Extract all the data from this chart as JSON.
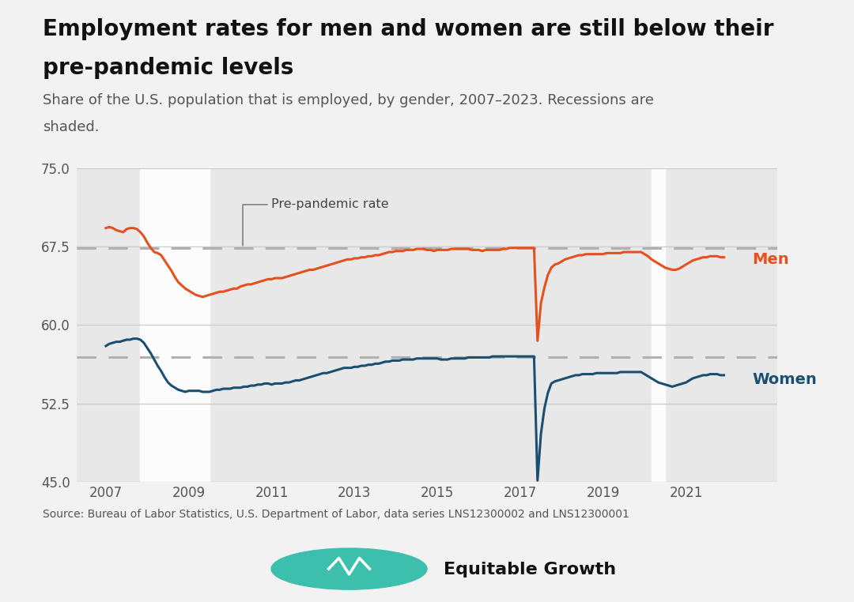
{
  "title": "Employment rates for men and women are still below their\npre-pandemic levels",
  "subtitle": "Share of the U.S. population that is employed, by gender, 2007–2023. Recessions are\nshaded.",
  "source": "Source: Bureau of Labor Statistics, U.S. Department of Labor, data series LNS12300002 and LNS12300001",
  "background_color": "#f2f2f2",
  "plot_bg_color": "#e8e8e8",
  "recession1_start": 2007.83,
  "recession1_end": 2009.5,
  "recession2_start": 2020.17,
  "recession2_end": 2020.5,
  "men_prepandemic": 67.4,
  "women_prepandemic": 56.9,
  "men_color": "#e5501e",
  "women_color": "#1b4f72",
  "annotation_text": "Pre-pandemic rate",
  "ylim": [
    45.0,
    75.0
  ],
  "xtick_years": [
    2007,
    2009,
    2011,
    2013,
    2015,
    2017,
    2019,
    2021
  ],
  "xlim_start": 2006.3,
  "xlim_end": 2023.2,
  "men_data": [
    69.3,
    69.4,
    69.3,
    69.1,
    69.0,
    68.9,
    69.2,
    69.3,
    69.3,
    69.2,
    68.9,
    68.5,
    67.9,
    67.4,
    67.0,
    66.9,
    66.7,
    66.2,
    65.7,
    65.2,
    64.6,
    64.1,
    63.8,
    63.5,
    63.3,
    63.1,
    62.9,
    62.8,
    62.7,
    62.8,
    62.9,
    63.0,
    63.1,
    63.2,
    63.2,
    63.3,
    63.4,
    63.5,
    63.5,
    63.7,
    63.8,
    63.9,
    63.9,
    64.0,
    64.1,
    64.2,
    64.3,
    64.4,
    64.4,
    64.5,
    64.5,
    64.5,
    64.6,
    64.7,
    64.8,
    64.9,
    65.0,
    65.1,
    65.2,
    65.3,
    65.3,
    65.4,
    65.5,
    65.6,
    65.7,
    65.8,
    65.9,
    66.0,
    66.1,
    66.2,
    66.3,
    66.3,
    66.4,
    66.4,
    66.5,
    66.5,
    66.6,
    66.6,
    66.7,
    66.7,
    66.8,
    66.9,
    67.0,
    67.0,
    67.1,
    67.1,
    67.1,
    67.2,
    67.2,
    67.2,
    67.3,
    67.3,
    67.3,
    67.2,
    67.2,
    67.1,
    67.2,
    67.2,
    67.2,
    67.2,
    67.3,
    67.3,
    67.3,
    67.3,
    67.3,
    67.3,
    67.2,
    67.2,
    67.2,
    67.1,
    67.2,
    67.2,
    67.2,
    67.2,
    67.2,
    67.3,
    67.3,
    67.4,
    67.4,
    67.4,
    67.4,
    67.4,
    67.4,
    67.4,
    67.4,
    58.5,
    62.1,
    63.6,
    64.8,
    65.5,
    65.8,
    65.9,
    66.1,
    66.3,
    66.4,
    66.5,
    66.6,
    66.7,
    66.7,
    66.8,
    66.8,
    66.8,
    66.8,
    66.8,
    66.8,
    66.9,
    66.9,
    66.9,
    66.9,
    66.9,
    67.0,
    67.0,
    67.0,
    67.0,
    67.0,
    67.0,
    66.8,
    66.6,
    66.3,
    66.1,
    65.9,
    65.7,
    65.5,
    65.4,
    65.3,
    65.3,
    65.4,
    65.6,
    65.8,
    66.0,
    66.2,
    66.3,
    66.4,
    66.5,
    66.5,
    66.6,
    66.6,
    66.6,
    66.5,
    66.5
  ],
  "women_data": [
    58.0,
    58.2,
    58.3,
    58.4,
    58.4,
    58.5,
    58.6,
    58.6,
    58.7,
    58.7,
    58.6,
    58.3,
    57.8,
    57.3,
    56.7,
    56.1,
    55.6,
    55.0,
    54.5,
    54.2,
    54.0,
    53.8,
    53.7,
    53.6,
    53.7,
    53.7,
    53.7,
    53.7,
    53.6,
    53.6,
    53.6,
    53.7,
    53.8,
    53.8,
    53.9,
    53.9,
    53.9,
    54.0,
    54.0,
    54.0,
    54.1,
    54.1,
    54.2,
    54.2,
    54.3,
    54.3,
    54.4,
    54.4,
    54.3,
    54.4,
    54.4,
    54.4,
    54.5,
    54.5,
    54.6,
    54.7,
    54.7,
    54.8,
    54.9,
    55.0,
    55.1,
    55.2,
    55.3,
    55.4,
    55.4,
    55.5,
    55.6,
    55.7,
    55.8,
    55.9,
    55.9,
    55.9,
    56.0,
    56.0,
    56.1,
    56.1,
    56.2,
    56.2,
    56.3,
    56.3,
    56.4,
    56.5,
    56.5,
    56.6,
    56.6,
    56.6,
    56.7,
    56.7,
    56.7,
    56.7,
    56.8,
    56.8,
    56.8,
    56.8,
    56.8,
    56.8,
    56.8,
    56.7,
    56.7,
    56.7,
    56.8,
    56.8,
    56.8,
    56.8,
    56.8,
    56.9,
    56.9,
    56.9,
    56.9,
    56.9,
    56.9,
    56.9,
    57.0,
    57.0,
    57.0,
    57.0,
    57.0,
    57.0,
    57.0,
    57.0,
    57.0,
    57.0,
    57.0,
    57.0,
    57.0,
    45.1,
    49.6,
    52.0,
    53.5,
    54.4,
    54.6,
    54.7,
    54.8,
    54.9,
    55.0,
    55.1,
    55.2,
    55.2,
    55.3,
    55.3,
    55.3,
    55.3,
    55.4,
    55.4,
    55.4,
    55.4,
    55.4,
    55.4,
    55.4,
    55.5,
    55.5,
    55.5,
    55.5,
    55.5,
    55.5,
    55.5,
    55.3,
    55.1,
    54.9,
    54.7,
    54.5,
    54.4,
    54.3,
    54.2,
    54.1,
    54.2,
    54.3,
    54.4,
    54.5,
    54.7,
    54.9,
    55.0,
    55.1,
    55.2,
    55.2,
    55.3,
    55.3,
    55.3,
    55.2,
    55.2
  ]
}
